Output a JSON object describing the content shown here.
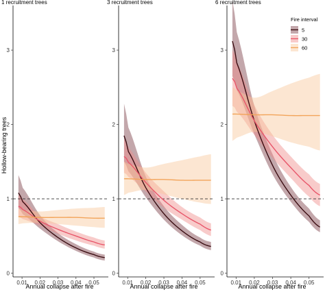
{
  "chart_data": {
    "type": "line",
    "ylabel": "Hollow-bearing trees",
    "xlabel": "Annual collapse after fire",
    "xlim": [
      0.005,
      0.058
    ],
    "ylim": [
      -0.05,
      3.6
    ],
    "x_ticks": [
      0.01,
      0.02,
      0.03,
      0.04,
      0.05
    ],
    "x_tick_labels": [
      "0.01",
      "0.02",
      "0.03",
      "0.04",
      "0.05"
    ],
    "y_ticks": [
      0,
      1,
      2,
      3
    ],
    "y_tick_labels": [
      "0",
      "1",
      "2",
      "3"
    ],
    "reference_line": {
      "y": 1,
      "style": "dashed"
    },
    "legend": {
      "title": "Fire interval",
      "placement": "top-right of third panel"
    },
    "panels": [
      {
        "title": "1 recruitment trees",
        "series": [
          {
            "name": "5",
            "color": "#3b0d12",
            "fill": "#7a3c44",
            "x": [
              0.008,
              0.01,
              0.02,
              0.03,
              0.04,
              0.05,
              0.056
            ],
            "y": [
              1.08,
              0.97,
              0.68,
              0.48,
              0.34,
              0.25,
              0.21
            ],
            "lower": [
              0.88,
              0.8,
              0.6,
              0.43,
              0.3,
              0.21,
              0.17
            ],
            "upper": [
              1.32,
              1.16,
              0.78,
              0.54,
              0.39,
              0.29,
              0.25
            ]
          },
          {
            "name": "30",
            "color": "#e8566a",
            "fill": "#f08c8a",
            "x": [
              0.008,
              0.01,
              0.02,
              0.03,
              0.04,
              0.05,
              0.056
            ],
            "y": [
              0.9,
              0.86,
              0.7,
              0.59,
              0.5,
              0.42,
              0.38
            ],
            "lower": [
              0.76,
              0.73,
              0.64,
              0.53,
              0.44,
              0.37,
              0.33
            ],
            "upper": [
              1.05,
              1.0,
              0.77,
              0.66,
              0.56,
              0.48,
              0.44
            ]
          },
          {
            "name": "60",
            "color": "#f2a45a",
            "fill": "#f8c89c",
            "x": [
              0.008,
              0.01,
              0.02,
              0.03,
              0.04,
              0.05,
              0.056
            ],
            "y": [
              0.76,
              0.76,
              0.75,
              0.75,
              0.75,
              0.74,
              0.74
            ],
            "lower": [
              0.66,
              0.67,
              0.68,
              0.66,
              0.64,
              0.62,
              0.61
            ],
            "upper": [
              0.87,
              0.85,
              0.83,
              0.85,
              0.87,
              0.88,
              0.89
            ]
          }
        ]
      },
      {
        "title": "3 recruitment trees",
        "series": [
          {
            "name": "5",
            "color": "#3b0d12",
            "fill": "#7a3c44",
            "x": [
              0.008,
              0.01,
              0.02,
              0.03,
              0.04,
              0.05,
              0.056
            ],
            "y": [
              1.85,
              1.65,
              1.15,
              0.8,
              0.57,
              0.42,
              0.36
            ],
            "lower": [
              1.5,
              1.38,
              1.02,
              0.72,
              0.51,
              0.37,
              0.31
            ],
            "upper": [
              2.28,
              1.98,
              1.3,
              0.9,
              0.65,
              0.48,
              0.42
            ]
          },
          {
            "name": "30",
            "color": "#e8566a",
            "fill": "#f08c8a",
            "x": [
              0.008,
              0.01,
              0.02,
              0.03,
              0.04,
              0.05,
              0.056
            ],
            "y": [
              1.57,
              1.5,
              1.22,
              0.98,
              0.8,
              0.66,
              0.58
            ],
            "lower": [
              1.35,
              1.3,
              1.1,
              0.88,
              0.72,
              0.58,
              0.5
            ],
            "upper": [
              1.8,
              1.7,
              1.35,
              1.1,
              0.89,
              0.75,
              0.67
            ]
          },
          {
            "name": "60",
            "color": "#f2a45a",
            "fill": "#f8c89c",
            "x": [
              0.008,
              0.01,
              0.02,
              0.03,
              0.04,
              0.05,
              0.056
            ],
            "y": [
              1.27,
              1.27,
              1.26,
              1.26,
              1.25,
              1.25,
              1.25
            ],
            "lower": [
              1.05,
              1.08,
              1.12,
              1.06,
              1.0,
              0.95,
              0.93
            ],
            "upper": [
              1.5,
              1.47,
              1.42,
              1.47,
              1.52,
              1.57,
              1.6
            ]
          }
        ]
      },
      {
        "title": "6 recruitment trees",
        "series": [
          {
            "name": "5",
            "color": "#3b0d12",
            "fill": "#7a3c44",
            "x": [
              0.008,
              0.01,
              0.02,
              0.03,
              0.04,
              0.05,
              0.056
            ],
            "y": [
              3.12,
              2.85,
              2.05,
              1.45,
              1.05,
              0.77,
              0.62
            ],
            "lower": [
              2.65,
              2.48,
              1.87,
              1.33,
              0.96,
              0.69,
              0.55
            ],
            "upper": [
              3.66,
              3.27,
              2.25,
              1.6,
              1.16,
              0.87,
              0.71
            ]
          },
          {
            "name": "30",
            "color": "#e8566a",
            "fill": "#f08c8a",
            "x": [
              0.008,
              0.01,
              0.02,
              0.03,
              0.04,
              0.05,
              0.056
            ],
            "y": [
              2.62,
              2.5,
              2.05,
              1.7,
              1.42,
              1.18,
              1.05
            ],
            "lower": [
              2.25,
              2.18,
              1.86,
              1.55,
              1.28,
              1.03,
              0.9
            ],
            "upper": [
              3.0,
              2.85,
              2.26,
              1.86,
              1.57,
              1.33,
              1.2
            ]
          },
          {
            "name": "60",
            "color": "#f2a45a",
            "fill": "#f8c89c",
            "x": [
              0.008,
              0.01,
              0.02,
              0.03,
              0.04,
              0.05,
              0.056
            ],
            "y": [
              2.14,
              2.14,
              2.13,
              2.13,
              2.12,
              2.12,
              2.12
            ],
            "lower": [
              1.78,
              1.82,
              1.9,
              1.84,
              1.76,
              1.7,
              1.65
            ],
            "upper": [
              2.5,
              2.46,
              2.36,
              2.45,
              2.55,
              2.63,
              2.68
            ]
          }
        ]
      }
    ]
  }
}
